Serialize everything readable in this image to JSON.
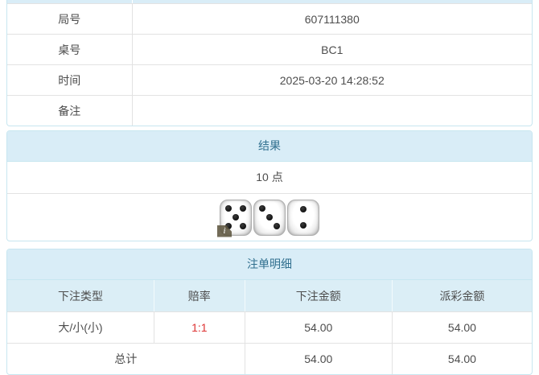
{
  "info_table": {
    "rows": [
      {
        "label": "局号",
        "value": "607111380"
      },
      {
        "label": "桌号",
        "value": "BC1"
      },
      {
        "label": "时间",
        "value": "2025-03-20 14:28:52"
      },
      {
        "label": "备注",
        "value": ""
      }
    ]
  },
  "result_panel": {
    "title": "结果",
    "points": "10 点",
    "dice": [
      5,
      3,
      2
    ],
    "info_badge": "i"
  },
  "bet_panel": {
    "title": "注单明细",
    "columns": [
      "下注类型",
      "赔率",
      "下注金额",
      "派彩金额"
    ],
    "rows": [
      {
        "type": "大/小(小)",
        "odds": "1:1",
        "bet": "54.00",
        "payout": "54.00"
      }
    ],
    "total": {
      "label": "总计",
      "bet": "54.00",
      "payout": "54.00"
    }
  },
  "colors": {
    "heading_bg": "#d9edf7",
    "heading_text": "#31708f",
    "panel_border": "#c7e6f0",
    "row_border": "#e2e2e2",
    "odds_red": "#dd3333",
    "body_text": "#4d4d4d",
    "badge_bg": "#5e5640"
  }
}
